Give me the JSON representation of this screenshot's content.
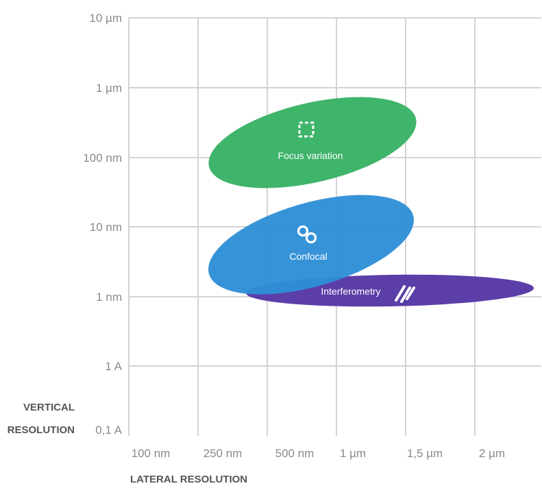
{
  "chart_data": {
    "type": "scatter",
    "title": "",
    "x_axis": {
      "label": "LATERAL RESOLUTION",
      "ticks": [
        "100 nm",
        "250 nm",
        "500 nm",
        "1 µm",
        "1,5 µm",
        "2 µm"
      ]
    },
    "y_axis": {
      "label_lines": [
        "VERTICAL",
        "RESOLUTION"
      ],
      "scale": "log",
      "ticks_top_to_bottom": [
        "10 µm",
        "1 µm",
        "100 nm",
        "10 nm",
        "1 nm",
        "1 A",
        "0,1 A"
      ]
    },
    "grid": true,
    "legend": "none",
    "regions": [
      {
        "name": "Focus variation",
        "icon": "dashed-square-icon",
        "color": "#3fb46b",
        "lateral_range": [
          "250 nm",
          "1,5 µm"
        ],
        "vertical_range": [
          "50 nm",
          "800 nm"
        ]
      },
      {
        "name": "Confocal",
        "icon": "linked-rings-icon",
        "color": "#2f8fd6",
        "lateral_range": [
          "250 nm",
          "1,5 µm"
        ],
        "vertical_range": [
          "1 nm",
          "30 nm"
        ]
      },
      {
        "name": "Interferometry",
        "icon": "diagonal-stripes-icon",
        "color": "#5b3ea8",
        "lateral_range": [
          "500 nm",
          "2 µm"
        ],
        "vertical_range": [
          "0.9 nm",
          "1.3 nm"
        ]
      }
    ]
  }
}
